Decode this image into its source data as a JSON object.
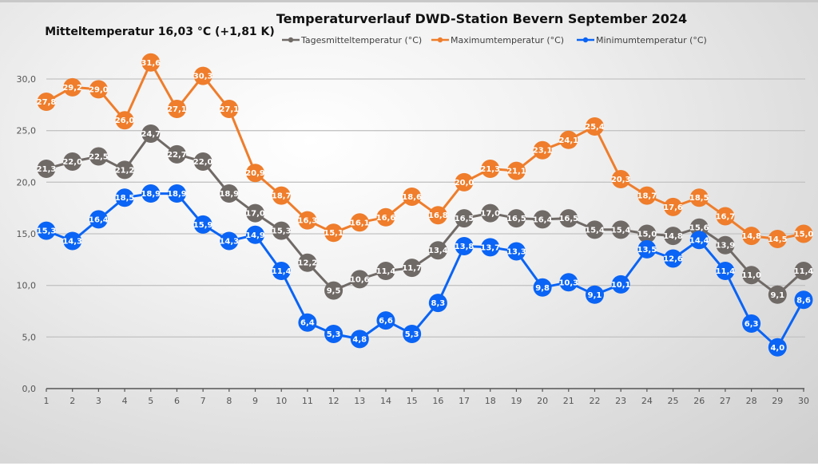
{
  "chart_data": {
    "type": "line",
    "title": "Temperaturverlauf  DWD-Station  Bevern September 2024",
    "subtitle": "Mitteltemperatur 16,03 °C (+1,81 K)",
    "xlabel": "",
    "ylabel": "",
    "x": [
      1,
      2,
      3,
      4,
      5,
      6,
      7,
      8,
      9,
      10,
      11,
      12,
      13,
      14,
      15,
      16,
      17,
      18,
      19,
      20,
      21,
      22,
      23,
      24,
      25,
      26,
      27,
      28,
      29,
      30
    ],
    "x_tick_labels": [
      "1",
      "2",
      "3",
      "4",
      "5",
      "6",
      "7",
      "8",
      "9",
      "10",
      "11",
      "12",
      "13",
      "14",
      "15",
      "16",
      "17",
      "18",
      "19",
      "20",
      "21",
      "22",
      "23",
      "24",
      "25",
      "26",
      "27",
      "28",
      "29",
      "30"
    ],
    "ylim": [
      0,
      30
    ],
    "y_ticks": [
      0,
      5,
      10,
      15,
      20,
      25,
      30
    ],
    "y_tick_labels": [
      "0,0",
      "5,0",
      "10,0",
      "15,0",
      "20,0",
      "25,0",
      "30,0"
    ],
    "grid": true,
    "legend_position": "top",
    "decimal_separator": ",",
    "series": [
      {
        "name": "Tagesmitteltemperatur (°C)",
        "color": "#706a67",
        "values": [
          21.3,
          22.0,
          22.5,
          21.2,
          24.7,
          22.7,
          22.0,
          18.9,
          17.0,
          15.3,
          12.2,
          9.5,
          10.6,
          11.4,
          11.7,
          13.4,
          16.5,
          17.0,
          16.5,
          16.4,
          16.5,
          15.4,
          15.4,
          15.0,
          14.8,
          15.6,
          13.9,
          11.0,
          9.1,
          11.4
        ]
      },
      {
        "name": "Maximumtemperatur (°C)",
        "color": "#ef7d2b",
        "values": [
          27.8,
          29.2,
          29.0,
          26.0,
          31.6,
          27.1,
          30.3,
          27.1,
          20.9,
          18.7,
          16.3,
          15.1,
          16.1,
          16.6,
          18.6,
          16.8,
          20.0,
          21.3,
          21.1,
          23.1,
          24.1,
          25.4,
          20.3,
          18.7,
          17.6,
          18.5,
          16.7,
          14.8,
          14.5,
          15.0
        ]
      },
      {
        "name": "Minimumtemperatur (°C)",
        "color": "#0a64f5",
        "values": [
          15.3,
          14.3,
          16.4,
          18.5,
          18.9,
          18.9,
          15.9,
          14.3,
          14.9,
          11.4,
          6.4,
          5.3,
          4.8,
          6.6,
          5.3,
          8.3,
          13.8,
          13.7,
          13.3,
          9.8,
          10.3,
          9.1,
          10.1,
          13.5,
          12.6,
          14.4,
          11.4,
          6.3,
          4.0,
          8.6
        ]
      }
    ]
  }
}
